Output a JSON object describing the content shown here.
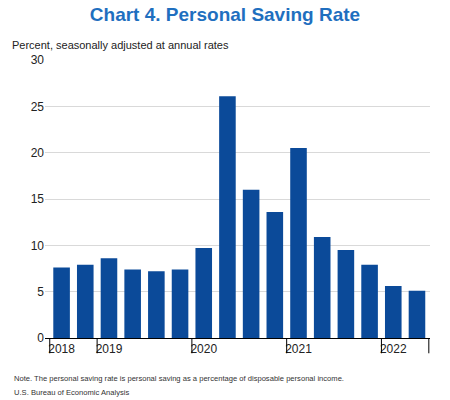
{
  "chart_data": {
    "type": "bar",
    "title": "Chart 4. Personal Saving Rate",
    "subtitle": "Percent, seasonally adjusted at annual rates",
    "categories": [
      "2018",
      null,
      "2019",
      null,
      null,
      null,
      "2020",
      null,
      null,
      null,
      "2021",
      null,
      null,
      null,
      "2022",
      null
    ],
    "values": [
      7.6,
      7.9,
      8.6,
      7.4,
      7.2,
      7.4,
      9.7,
      26.1,
      16.0,
      13.6,
      20.5,
      10.9,
      9.5,
      7.9,
      5.6,
      5.1
    ],
    "color": "#0b4a99",
    "ylim": [
      0,
      30
    ],
    "yticks": [
      0,
      5,
      10,
      15,
      20,
      25,
      30
    ],
    "grid": true,
    "annotations": [
      "Note. The personal saving rate is personal saving as a percentage of disposable personal income.",
      "U.S. Bureau of Economic Analysis"
    ]
  }
}
